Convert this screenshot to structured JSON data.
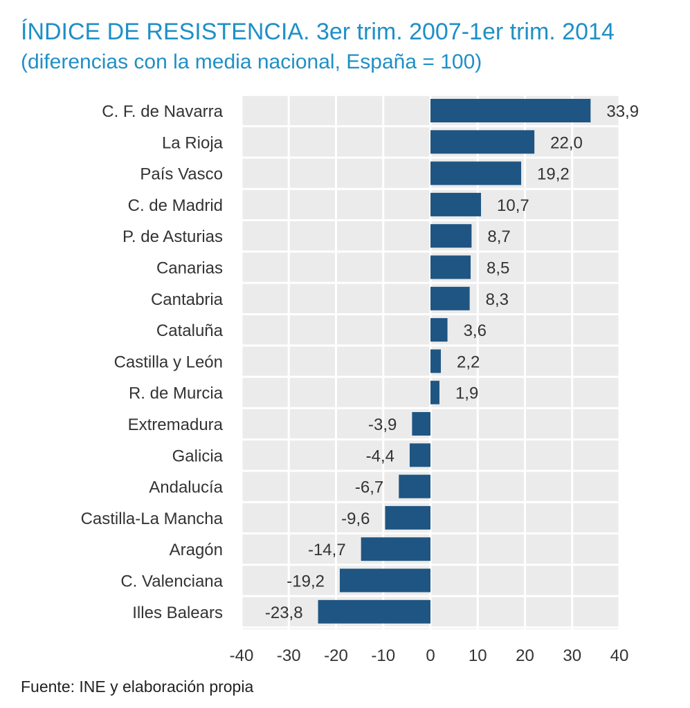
{
  "title": "ÍNDICE DE RESISTENCIA. 3er trim. 2007-1er trim. 2014",
  "subtitle": "(diferencias con la media nacional, España = 100)",
  "source": "Fuente: INE y elaboración propia",
  "colors": {
    "title": "#1f8fc6",
    "bar": "#1f5582",
    "plot_background": "#ebebeb",
    "grid": "#ffffff",
    "text": "#333333"
  },
  "chart_data": {
    "type": "bar",
    "orientation": "horizontal",
    "categories": [
      "C. F. de Navarra",
      "La Rioja",
      "País Vasco",
      "C. de Madrid",
      "P. de Asturias",
      "Canarias",
      "Cantabria",
      "Cataluña",
      "Castilla y León",
      "R. de Murcia",
      "Extremadura",
      "Galicia",
      "Andalucía",
      "Castilla-La Mancha",
      "Aragón",
      "C. Valenciana",
      "Illes Balears"
    ],
    "values": [
      33.9,
      22.0,
      19.2,
      10.7,
      8.7,
      8.5,
      8.3,
      3.6,
      2.2,
      1.9,
      -3.9,
      -4.4,
      -6.7,
      -9.6,
      -14.7,
      -19.2,
      -23.8
    ],
    "value_labels": [
      "33,9",
      "22,0",
      "19,2",
      "10,7",
      "8,7",
      "8,5",
      "8,3",
      "3,6",
      "2,2",
      "1,9",
      "-3,9",
      "-4,4",
      "-6,7",
      "-9,6",
      "-14,7",
      "-19,2",
      "-23,8"
    ],
    "xlim": [
      -40,
      40
    ],
    "xticks": [
      -40,
      -30,
      -20,
      -10,
      0,
      10,
      20,
      30,
      40
    ],
    "xtick_labels": [
      "-40",
      "-30",
      "-20",
      "-10",
      "0",
      "10",
      "20",
      "30",
      "40"
    ],
    "grid": true,
    "legend": false
  }
}
